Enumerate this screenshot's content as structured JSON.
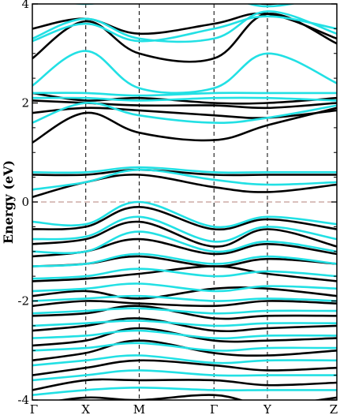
{
  "chart_data": {
    "type": "line",
    "title": "",
    "xlabel": "",
    "ylabel": "Energy (eV)",
    "ylim": [
      -4,
      4
    ],
    "yticks": [
      -4,
      -2,
      0,
      2,
      4
    ],
    "yticklabels": [
      "-4",
      "-2",
      "0",
      "2",
      "4"
    ],
    "xticklabels": [
      "Γ",
      "X",
      "M",
      "Γ",
      "Y",
      "Z"
    ],
    "kpoint_positions": [
      0,
      1,
      2,
      3.4,
      4.4,
      5.7
    ],
    "fermi_level": 0,
    "grid": false,
    "colors": {
      "series_black": "#000000",
      "series_cyan": "#22e0e4",
      "fermi": "#c49a94"
    },
    "series": [
      {
        "color": "black",
        "bands": [
          [
            4.2,
            4.1,
            4.2,
            4.3,
            4.0,
            4.3
          ],
          [
            3.5,
            3.7,
            3.4,
            3.6,
            3.8,
            3.3
          ],
          [
            2.9,
            3.65,
            3.0,
            2.9,
            3.8,
            3.2
          ],
          [
            2.2,
            2.05,
            2.1,
            2.0,
            2.0,
            2.1
          ],
          [
            2.05,
            2.0,
            1.95,
            1.95,
            1.9,
            2.0
          ],
          [
            1.8,
            1.9,
            1.85,
            1.75,
            1.7,
            1.85
          ],
          [
            1.2,
            1.8,
            1.4,
            1.25,
            1.55,
            1.9
          ],
          [
            0.55,
            0.55,
            0.65,
            0.55,
            0.55,
            0.55
          ],
          [
            0.1,
            0.4,
            0.55,
            0.3,
            0.2,
            0.35
          ],
          [
            -0.55,
            -0.5,
            -0.1,
            -0.55,
            -0.35,
            -0.55
          ],
          [
            -0.85,
            -0.75,
            -0.4,
            -0.9,
            -0.55,
            -0.9
          ],
          [
            -1.1,
            -1.0,
            -0.75,
            -1.05,
            -0.85,
            -1.05
          ],
          [
            -1.3,
            -1.25,
            -1.1,
            -1.3,
            -1.15,
            -1.25
          ],
          [
            -1.6,
            -1.55,
            -1.45,
            -1.3,
            -1.45,
            -1.6
          ],
          [
            -1.9,
            -1.8,
            -1.95,
            -1.75,
            -1.75,
            -1.9
          ],
          [
            -2.1,
            -2.0,
            -2.05,
            -2.1,
            -2.0,
            -2.05
          ],
          [
            -2.3,
            -2.25,
            -2.1,
            -2.35,
            -2.3,
            -2.3
          ],
          [
            -2.6,
            -2.5,
            -2.35,
            -2.6,
            -2.55,
            -2.5
          ],
          [
            -2.9,
            -2.8,
            -2.55,
            -2.8,
            -2.8,
            -2.75
          ],
          [
            -3.2,
            -3.05,
            -2.8,
            -3.05,
            -3.1,
            -3.0
          ],
          [
            -3.5,
            -3.35,
            -3.2,
            -3.3,
            -3.4,
            -3.35
          ],
          [
            -3.8,
            -3.6,
            -3.6,
            -3.6,
            -3.7,
            -3.65
          ],
          [
            -4.1,
            -3.95,
            -4.0,
            -3.9,
            -4.1,
            -3.95
          ]
        ]
      },
      {
        "color": "cyan",
        "bands": [
          [
            4.2,
            4.0,
            4.2,
            4.2,
            3.95,
            4.2
          ],
          [
            3.25,
            3.6,
            3.25,
            3.5,
            3.75,
            3.5
          ],
          [
            3.3,
            3.7,
            3.3,
            3.3,
            3.85,
            3.4
          ],
          [
            2.35,
            3.05,
            2.3,
            2.3,
            3.0,
            2.4
          ],
          [
            2.2,
            2.2,
            2.15,
            2.2,
            2.2,
            2.2
          ],
          [
            2.1,
            2.1,
            2.05,
            2.1,
            2.1,
            2.05
          ],
          [
            1.6,
            2.0,
            1.75,
            1.6,
            1.7,
            1.95
          ],
          [
            0.6,
            0.6,
            0.7,
            0.6,
            0.6,
            0.6
          ],
          [
            0.25,
            0.4,
            0.65,
            0.45,
            0.35,
            0.4
          ],
          [
            -0.4,
            -0.45,
            0.0,
            -0.5,
            -0.3,
            -0.45
          ],
          [
            -0.75,
            -0.7,
            -0.3,
            -0.8,
            -0.5,
            -0.75
          ],
          [
            -1.0,
            -1.0,
            -0.6,
            -1.0,
            -0.8,
            -1.0
          ],
          [
            -1.3,
            -1.25,
            -1.05,
            -1.25,
            -1.1,
            -1.25
          ],
          [
            -1.55,
            -1.5,
            -1.35,
            -1.5,
            -1.4,
            -1.5
          ],
          [
            -1.8,
            -1.75,
            -1.65,
            -1.8,
            -1.7,
            -1.75
          ],
          [
            -2.0,
            -1.95,
            -1.9,
            -2.0,
            -1.95,
            -2.0
          ],
          [
            -2.25,
            -2.2,
            -2.15,
            -2.25,
            -2.2,
            -2.2
          ],
          [
            -2.5,
            -2.45,
            -2.4,
            -2.5,
            -2.45,
            -2.45
          ],
          [
            -2.75,
            -2.7,
            -2.6,
            -2.75,
            -2.7,
            -2.7
          ],
          [
            -3.0,
            -2.95,
            -2.85,
            -3.0,
            -2.95,
            -2.95
          ],
          [
            -3.3,
            -3.2,
            -3.1,
            -3.25,
            -3.2,
            -3.2
          ],
          [
            -3.6,
            -3.5,
            -3.4,
            -3.5,
            -3.5,
            -3.5
          ],
          [
            -3.9,
            -3.8,
            -3.75,
            -3.8,
            -3.8,
            -3.8
          ]
        ]
      }
    ]
  }
}
